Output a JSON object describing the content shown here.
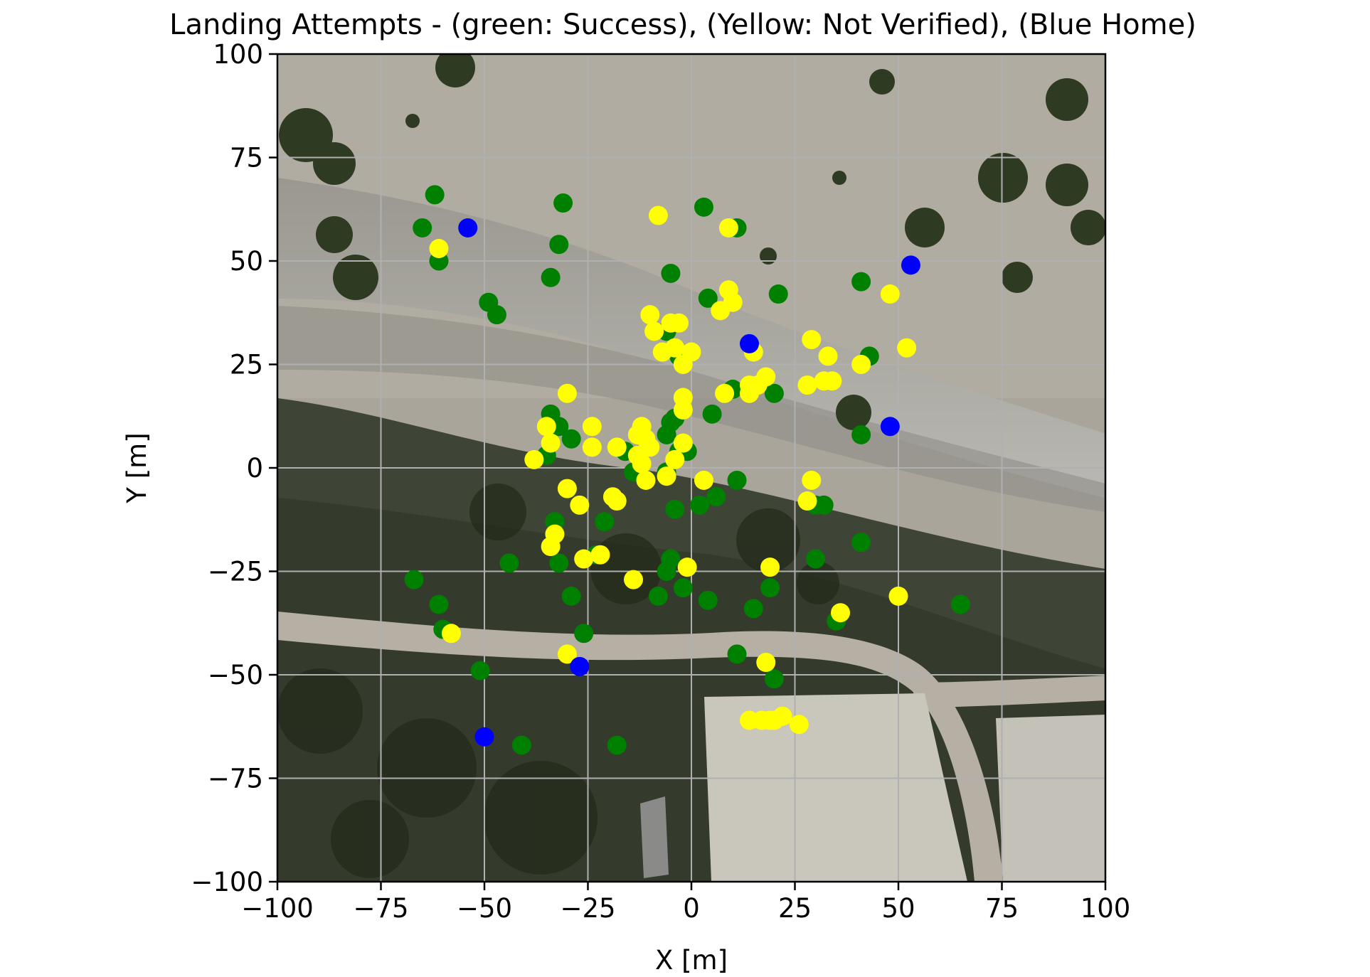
{
  "chart_data": {
    "type": "scatter",
    "title": "Landing Attempts - (green: Success), (Yellow: Not Verified), (Blue Home)",
    "xlabel": "X [m]",
    "ylabel": "Y [m]",
    "xlim": [
      -100,
      100
    ],
    "ylim": [
      -100,
      100
    ],
    "xticks": [
      -100,
      -75,
      -50,
      -25,
      0,
      25,
      50,
      75,
      100
    ],
    "yticks": [
      -100,
      -75,
      -50,
      -25,
      0,
      25,
      50,
      75,
      100
    ],
    "xtick_labels": [
      "−100",
      "−75",
      "−50",
      "−25",
      "0",
      "25",
      "50",
      "75",
      "100"
    ],
    "ytick_labels": [
      "−100",
      "−75",
      "−50",
      "−25",
      "0",
      "25",
      "50",
      "75",
      "100"
    ],
    "grid": true,
    "background": "aerial-photo",
    "series": [
      {
        "color": "#008000",
        "points": [
          [
            -62,
            66
          ],
          [
            -65,
            58
          ],
          [
            -61,
            50
          ],
          [
            -31,
            64
          ],
          [
            -32,
            54
          ],
          [
            -34,
            46
          ],
          [
            -49,
            40
          ],
          [
            -47,
            37
          ],
          [
            3,
            63
          ],
          [
            11,
            58
          ],
          [
            -5,
            47
          ],
          [
            4,
            41
          ],
          [
            21,
            42
          ],
          [
            41,
            45
          ],
          [
            43,
            27
          ],
          [
            -6,
            33
          ],
          [
            -3,
            27
          ],
          [
            10,
            19
          ],
          [
            20,
            18
          ],
          [
            -34,
            13
          ],
          [
            -32,
            10
          ],
          [
            -29,
            7
          ],
          [
            -35,
            3
          ],
          [
            -38,
            2
          ],
          [
            -5,
            11
          ],
          [
            -6,
            8
          ],
          [
            -4,
            12
          ],
          [
            -1,
            4
          ],
          [
            5,
            13
          ],
          [
            -16,
            4
          ],
          [
            -14,
            -1
          ],
          [
            -6,
            -1
          ],
          [
            -3,
            4
          ],
          [
            11,
            -3
          ],
          [
            6,
            -7
          ],
          [
            2,
            -9
          ],
          [
            -4,
            -10
          ],
          [
            -33,
            -13
          ],
          [
            -21,
            -13
          ],
          [
            -32,
            -23
          ],
          [
            -23,
            -21
          ],
          [
            -44,
            -23
          ],
          [
            -67,
            -27
          ],
          [
            -61,
            -33
          ],
          [
            -29,
            -31
          ],
          [
            -5,
            -22
          ],
          [
            -6,
            -25
          ],
          [
            -2,
            -29
          ],
          [
            -8,
            -31
          ],
          [
            4,
            -32
          ],
          [
            15,
            -34
          ],
          [
            19,
            -29
          ],
          [
            30,
            -22
          ],
          [
            41,
            -18
          ],
          [
            30,
            -9
          ],
          [
            32,
            -9
          ],
          [
            65,
            -33
          ],
          [
            35,
            -37
          ],
          [
            -60,
            -39
          ],
          [
            -26,
            -40
          ],
          [
            -51,
            -49
          ],
          [
            11,
            -45
          ],
          [
            20,
            -51
          ],
          [
            -41,
            -67
          ],
          [
            -18,
            -67
          ],
          [
            41,
            8
          ]
        ]
      },
      {
        "color": "#ffff00",
        "points": [
          [
            -8,
            61
          ],
          [
            9,
            58
          ],
          [
            -61,
            53
          ],
          [
            -10,
            37
          ],
          [
            7,
            38
          ],
          [
            9,
            43
          ],
          [
            10,
            40
          ],
          [
            -9,
            33
          ],
          [
            -5,
            35
          ],
          [
            -3,
            35
          ],
          [
            -7,
            28
          ],
          [
            -4,
            29
          ],
          [
            0,
            28
          ],
          [
            -2,
            25
          ],
          [
            15,
            28
          ],
          [
            14,
            20
          ],
          [
            14,
            18
          ],
          [
            16,
            20
          ],
          [
            18,
            22
          ],
          [
            29,
            31
          ],
          [
            33,
            27
          ],
          [
            28,
            20
          ],
          [
            32,
            21
          ],
          [
            34,
            21
          ],
          [
            41,
            25
          ],
          [
            48,
            42
          ],
          [
            52,
            29
          ],
          [
            -30,
            18
          ],
          [
            -24,
            10
          ],
          [
            -35,
            10
          ],
          [
            -34,
            6
          ],
          [
            -24,
            5
          ],
          [
            -18,
            5
          ],
          [
            -13,
            8
          ],
          [
            -12,
            10
          ],
          [
            -11,
            7
          ],
          [
            -10,
            5
          ],
          [
            -13,
            3
          ],
          [
            -11,
            -3
          ],
          [
            -6,
            -2
          ],
          [
            -4,
            2
          ],
          [
            -2,
            6
          ],
          [
            -2,
            17
          ],
          [
            -2,
            14
          ],
          [
            8,
            18
          ],
          [
            3,
            -3
          ],
          [
            -38,
            2
          ],
          [
            -12,
            1
          ],
          [
            -30,
            -5
          ],
          [
            -27,
            -9
          ],
          [
            -19,
            -7
          ],
          [
            -18,
            -8
          ],
          [
            28,
            -8
          ],
          [
            29,
            -3
          ],
          [
            -34,
            -19
          ],
          [
            -33,
            -16
          ],
          [
            -26,
            -22
          ],
          [
            -22,
            -21
          ],
          [
            -14,
            -27
          ],
          [
            -1,
            -24
          ],
          [
            19,
            -24
          ],
          [
            50,
            -31
          ],
          [
            36,
            -35
          ],
          [
            -58,
            -40
          ],
          [
            -30,
            -45
          ],
          [
            18,
            -47
          ],
          [
            14,
            -61
          ],
          [
            17,
            -61
          ],
          [
            19,
            -61
          ],
          [
            20,
            -61
          ],
          [
            22,
            -60
          ],
          [
            26,
            -62
          ]
        ]
      },
      {
        "color": "#0000ff",
        "points": [
          [
            -54,
            58
          ],
          [
            53,
            49
          ],
          [
            14,
            30
          ],
          [
            48,
            10
          ],
          [
            -27,
            -48
          ],
          [
            -50,
            -65
          ]
        ]
      }
    ]
  }
}
